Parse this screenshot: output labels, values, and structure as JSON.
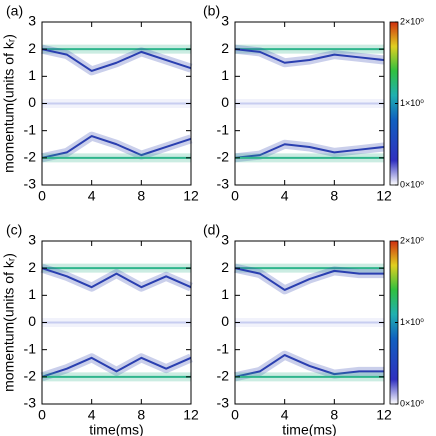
{
  "chart_data": [
    {
      "type": "line",
      "panel_label": "(a)",
      "ylabel": "momentum(units of kᵣ)",
      "x": [
        0,
        2,
        4,
        6,
        8,
        10,
        12
      ],
      "xlim": [
        0,
        12
      ],
      "xticks": [
        0,
        4,
        8,
        12
      ],
      "ylim": [
        -3,
        3
      ],
      "yticks": [
        -3,
        -2,
        -1,
        0,
        1,
        2,
        3
      ],
      "series": [
        {
          "color": "#2fb58c",
          "values": [
            2,
            2,
            2,
            2,
            2,
            2,
            2
          ]
        },
        {
          "color": "#2a3fb0",
          "values": [
            2,
            1.8,
            1.2,
            1.5,
            1.9,
            1.6,
            1.3
          ]
        },
        {
          "color": "#c8cdf0",
          "values": [
            0,
            0,
            0,
            0,
            0,
            0,
            0
          ]
        },
        {
          "color": "#2a3fb0",
          "values": [
            -2,
            -1.8,
            -1.2,
            -1.5,
            -1.9,
            -1.6,
            -1.3
          ]
        },
        {
          "color": "#2fb58c",
          "values": [
            -2,
            -2,
            -2,
            -2,
            -2,
            -2,
            -2
          ]
        }
      ]
    },
    {
      "type": "line",
      "panel_label": "(b)",
      "x": [
        0,
        2,
        4,
        6,
        8,
        10,
        12
      ],
      "xlim": [
        0,
        12
      ],
      "xticks": [
        0,
        4,
        8,
        12
      ],
      "ylim": [
        -3,
        3
      ],
      "yticks": [
        -3,
        -2,
        -1,
        0,
        1,
        2,
        3
      ],
      "colorbar": {
        "lim": [
          0,
          2
        ],
        "ticks": [
          {
            "value": 0,
            "label": "0×10⁰"
          },
          {
            "value": 1,
            "label": "1×10⁰"
          },
          {
            "value": 2,
            "label": "2×10⁰"
          }
        ]
      },
      "series": [
        {
          "color": "#2fb58c",
          "values": [
            2,
            2,
            2,
            2,
            2,
            2,
            2
          ]
        },
        {
          "color": "#2a3fb0",
          "values": [
            2,
            1.9,
            1.5,
            1.6,
            1.8,
            1.7,
            1.6
          ]
        },
        {
          "color": "#c8cdf0",
          "values": [
            0,
            0,
            0,
            0,
            0,
            0,
            0
          ]
        },
        {
          "color": "#2a3fb0",
          "values": [
            -2,
            -1.9,
            -1.5,
            -1.6,
            -1.8,
            -1.7,
            -1.6
          ]
        },
        {
          "color": "#2fb58c",
          "values": [
            -2,
            -2,
            -2,
            -2,
            -2,
            -2,
            -2
          ]
        }
      ]
    },
    {
      "type": "line",
      "panel_label": "(c)",
      "ylabel": "momentum(units of kᵣ)",
      "xlabel": "time(ms)",
      "x": [
        0,
        2,
        4,
        6,
        8,
        10,
        12
      ],
      "xlim": [
        0,
        12
      ],
      "xticks": [
        0,
        4,
        8,
        12
      ],
      "ylim": [
        -3,
        3
      ],
      "yticks": [
        -3,
        -2,
        -1,
        0,
        1,
        2,
        3
      ],
      "series": [
        {
          "color": "#2fb58c",
          "values": [
            2,
            2,
            2,
            2,
            2,
            2,
            2
          ]
        },
        {
          "color": "#2a3fb0",
          "values": [
            2,
            1.7,
            1.3,
            1.8,
            1.3,
            1.7,
            1.3
          ]
        },
        {
          "color": "#c8cdf0",
          "values": [
            0,
            0,
            0,
            0,
            0,
            0,
            0
          ]
        },
        {
          "color": "#2a3fb0",
          "values": [
            -2,
            -1.7,
            -1.3,
            -1.8,
            -1.3,
            -1.7,
            -1.3
          ]
        },
        {
          "color": "#2fb58c",
          "values": [
            -2,
            -2,
            -2,
            -2,
            -2,
            -2,
            -2
          ]
        }
      ]
    },
    {
      "type": "line",
      "panel_label": "(d)",
      "xlabel": "time(ms)",
      "x": [
        0,
        2,
        4,
        6,
        8,
        10,
        12
      ],
      "xlim": [
        0,
        12
      ],
      "xticks": [
        0,
        4,
        8,
        12
      ],
      "ylim": [
        -3,
        3
      ],
      "yticks": [
        -3,
        -2,
        -1,
        0,
        1,
        2,
        3
      ],
      "colorbar": {
        "lim": [
          0,
          2
        ],
        "ticks": [
          {
            "value": 0,
            "label": "0×10⁰"
          },
          {
            "value": 1,
            "label": "1×10⁰"
          },
          {
            "value": 2,
            "label": "2×10⁰"
          }
        ]
      },
      "series": [
        {
          "color": "#2fb58c",
          "values": [
            2,
            2,
            2,
            2,
            2,
            2,
            2
          ]
        },
        {
          "color": "#2a3fb0",
          "values": [
            2,
            1.8,
            1.2,
            1.6,
            1.9,
            1.8,
            1.8
          ]
        },
        {
          "color": "#c8cdf0",
          "values": [
            0,
            0,
            0,
            0,
            0,
            0,
            0
          ]
        },
        {
          "color": "#2a3fb0",
          "values": [
            -2,
            -1.8,
            -1.2,
            -1.6,
            -1.9,
            -1.8,
            -1.8
          ]
        },
        {
          "color": "#2fb58c",
          "values": [
            -2,
            -2,
            -2,
            -2,
            -2,
            -2,
            -2
          ]
        }
      ]
    }
  ]
}
